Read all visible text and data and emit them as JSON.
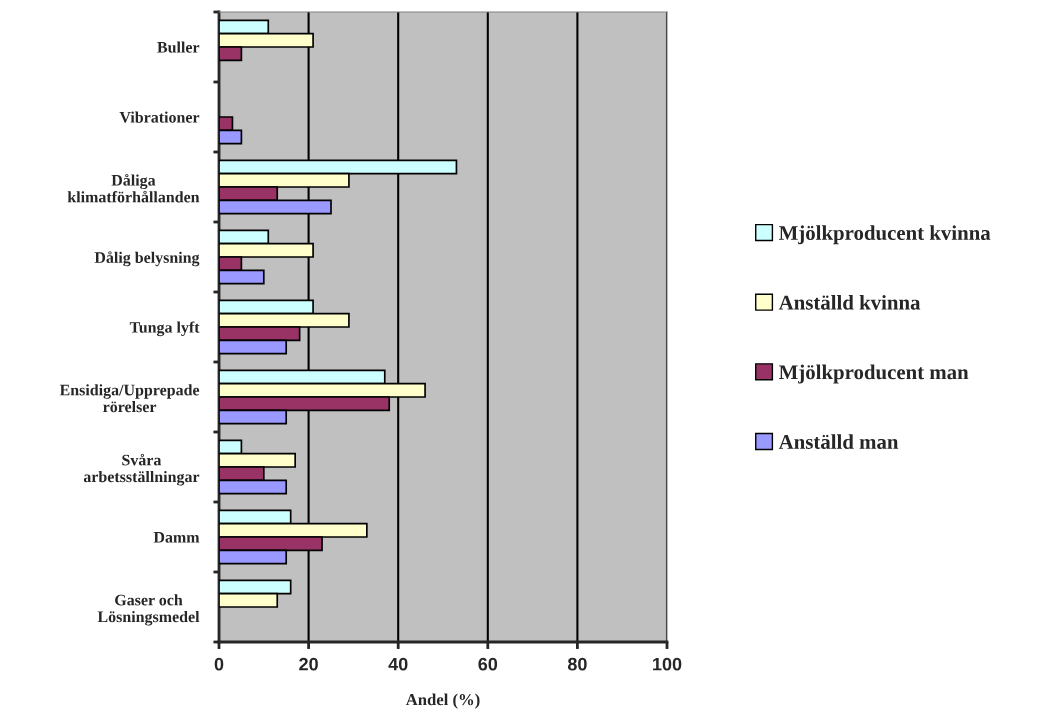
{
  "chart_data": {
    "type": "bar",
    "orientation": "horizontal",
    "xlabel": "Andel (%)",
    "categories": [
      "Buller",
      "Vibrationer",
      "Dåliga\nklimatförhållanden",
      "Dålig belysning",
      "Tunga lyft",
      "Ensidiga/Upprepade\nrörelser",
      "Svåra\narbetsställningar",
      "Damm",
      "Gaser och\nLösningsmedel"
    ],
    "series": [
      {
        "name": "Mjölkproducent kvinna",
        "color": "#ccffff",
        "values": [
          11,
          null,
          53,
          11,
          21,
          37,
          5,
          16,
          16
        ]
      },
      {
        "name": "Anställd kvinna",
        "color": "#ffffcc",
        "values": [
          21,
          null,
          29,
          21,
          29,
          46,
          17,
          33,
          13
        ]
      },
      {
        "name": "Mjölkproducent man",
        "color": "#993366",
        "values": [
          5,
          3,
          13,
          5,
          18,
          38,
          10,
          23,
          null
        ]
      },
      {
        "name": "Anställd man",
        "color": "#9999ff",
        "values": [
          null,
          5,
          25,
          10,
          15,
          15,
          15,
          15,
          null
        ]
      }
    ],
    "xlim": [
      0,
      100
    ],
    "xticks": [
      0,
      20,
      40,
      60,
      80,
      100
    ],
    "grid": "x",
    "legend": "right"
  }
}
